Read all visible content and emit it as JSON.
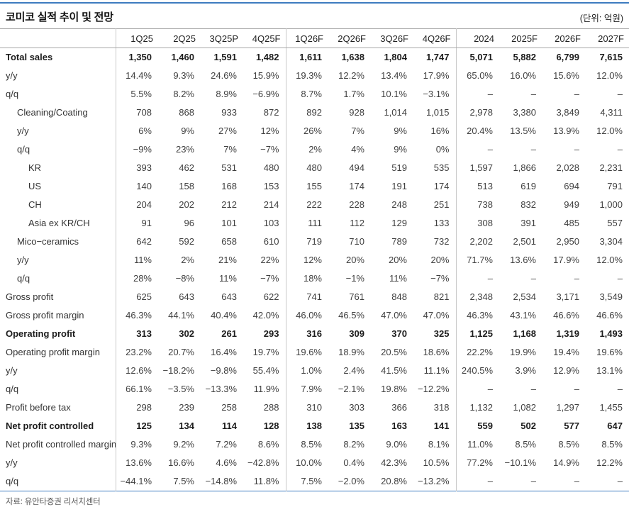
{
  "meta": {
    "title": "코미코 실적 추이 및 전망",
    "unit_label": "(단위: 억원)",
    "source": "자료: 유안타증권 리서치센터"
  },
  "colors": {
    "accent_blue": "#3d7cc0",
    "rule_gray": "#a6a6a6",
    "divider_gray": "#c9c9c9"
  },
  "table": {
    "columns": [
      "1Q25",
      "2Q25",
      "3Q25P",
      "4Q25F",
      "1Q26F",
      "2Q26F",
      "3Q26F",
      "4Q26F",
      "2024",
      "2025F",
      "2026F",
      "2027F"
    ],
    "quarter_column_count": 8,
    "year_column_count": 4,
    "group_divider_before_indexes": [
      4,
      8
    ],
    "rows": [
      {
        "label": "Total sales",
        "indent": 0,
        "bold": true,
        "values": [
          "1,350",
          "1,460",
          "1,591",
          "1,482",
          "1,611",
          "1,638",
          "1,804",
          "1,747",
          "5,071",
          "5,882",
          "6,799",
          "7,615"
        ]
      },
      {
        "label": "y/y",
        "indent": 0,
        "bold": false,
        "values": [
          "14.4%",
          "9.3%",
          "24.6%",
          "15.9%",
          "19.3%",
          "12.2%",
          "13.4%",
          "17.9%",
          "65.0%",
          "16.0%",
          "15.6%",
          "12.0%"
        ]
      },
      {
        "label": "q/q",
        "indent": 0,
        "bold": false,
        "values": [
          "5.5%",
          "8.2%",
          "8.9%",
          "−6.9%",
          "8.7%",
          "1.7%",
          "10.1%",
          "−3.1%",
          "–",
          "–",
          "–",
          "–"
        ]
      },
      {
        "label": "Cleaning/Coating",
        "indent": 1,
        "bold": false,
        "values": [
          "708",
          "868",
          "933",
          "872",
          "892",
          "928",
          "1,014",
          "1,015",
          "2,978",
          "3,380",
          "3,849",
          "4,311"
        ]
      },
      {
        "label": "y/y",
        "indent": 1,
        "bold": false,
        "values": [
          "6%",
          "9%",
          "27%",
          "12%",
          "26%",
          "7%",
          "9%",
          "16%",
          "20.4%",
          "13.5%",
          "13.9%",
          "12.0%"
        ]
      },
      {
        "label": "q/q",
        "indent": 1,
        "bold": false,
        "values": [
          "−9%",
          "23%",
          "7%",
          "−7%",
          "2%",
          "4%",
          "9%",
          "0%",
          "–",
          "–",
          "–",
          "–"
        ]
      },
      {
        "label": "KR",
        "indent": 2,
        "bold": false,
        "values": [
          "393",
          "462",
          "531",
          "480",
          "480",
          "494",
          "519",
          "535",
          "1,597",
          "1,866",
          "2,028",
          "2,231"
        ]
      },
      {
        "label": "US",
        "indent": 2,
        "bold": false,
        "values": [
          "140",
          "158",
          "168",
          "153",
          "155",
          "174",
          "191",
          "174",
          "513",
          "619",
          "694",
          "791"
        ]
      },
      {
        "label": "CH",
        "indent": 2,
        "bold": false,
        "values": [
          "204",
          "202",
          "212",
          "214",
          "222",
          "228",
          "248",
          "251",
          "738",
          "832",
          "949",
          "1,000"
        ]
      },
      {
        "label": "Asia ex KR/CH",
        "indent": 2,
        "bold": false,
        "values": [
          "91",
          "96",
          "101",
          "103",
          "111",
          "112",
          "129",
          "133",
          "308",
          "391",
          "485",
          "557"
        ]
      },
      {
        "label": "Mico−ceramics",
        "indent": 1,
        "bold": false,
        "values": [
          "642",
          "592",
          "658",
          "610",
          "719",
          "710",
          "789",
          "732",
          "2,202",
          "2,501",
          "2,950",
          "3,304"
        ]
      },
      {
        "label": "y/y",
        "indent": 1,
        "bold": false,
        "values": [
          "11%",
          "2%",
          "21%",
          "22%",
          "12%",
          "20%",
          "20%",
          "20%",
          "71.7%",
          "13.6%",
          "17.9%",
          "12.0%"
        ]
      },
      {
        "label": "q/q",
        "indent": 1,
        "bold": false,
        "values": [
          "28%",
          "−8%",
          "11%",
          "−7%",
          "18%",
          "−1%",
          "11%",
          "−7%",
          "–",
          "–",
          "–",
          "–"
        ]
      },
      {
        "label": "Gross profit",
        "indent": 0,
        "bold": false,
        "values": [
          "625",
          "643",
          "643",
          "622",
          "741",
          "761",
          "848",
          "821",
          "2,348",
          "2,534",
          "3,171",
          "3,549"
        ]
      },
      {
        "label": "Gross profit margin",
        "indent": 0,
        "bold": false,
        "values": [
          "46.3%",
          "44.1%",
          "40.4%",
          "42.0%",
          "46.0%",
          "46.5%",
          "47.0%",
          "47.0%",
          "46.3%",
          "43.1%",
          "46.6%",
          "46.6%"
        ]
      },
      {
        "label": "Operating profit",
        "indent": 0,
        "bold": true,
        "values": [
          "313",
          "302",
          "261",
          "293",
          "316",
          "309",
          "370",
          "325",
          "1,125",
          "1,168",
          "1,319",
          "1,493"
        ]
      },
      {
        "label": "Operating profit margin",
        "indent": 0,
        "bold": false,
        "values": [
          "23.2%",
          "20.7%",
          "16.4%",
          "19.7%",
          "19.6%",
          "18.9%",
          "20.5%",
          "18.6%",
          "22.2%",
          "19.9%",
          "19.4%",
          "19.6%"
        ]
      },
      {
        "label": "y/y",
        "indent": 0,
        "bold": false,
        "values": [
          "12.6%",
          "−18.2%",
          "−9.8%",
          "55.4%",
          "1.0%",
          "2.4%",
          "41.5%",
          "11.1%",
          "240.5%",
          "3.9%",
          "12.9%",
          "13.1%"
        ]
      },
      {
        "label": "q/q",
        "indent": 0,
        "bold": false,
        "values": [
          "66.1%",
          "−3.5%",
          "−13.3%",
          "11.9%",
          "7.9%",
          "−2.1%",
          "19.8%",
          "−12.2%",
          "–",
          "–",
          "–",
          "–"
        ]
      },
      {
        "label": "Profit before tax",
        "indent": 0,
        "bold": false,
        "values": [
          "298",
          "239",
          "258",
          "288",
          "310",
          "303",
          "366",
          "318",
          "1,132",
          "1,082",
          "1,297",
          "1,455"
        ]
      },
      {
        "label": "Net profit controlled",
        "indent": 0,
        "bold": true,
        "values": [
          "125",
          "134",
          "114",
          "128",
          "138",
          "135",
          "163",
          "141",
          "559",
          "502",
          "577",
          "647"
        ]
      },
      {
        "label": "Net profit controlled margin",
        "indent": 0,
        "bold": false,
        "values": [
          "9.3%",
          "9.2%",
          "7.2%",
          "8.6%",
          "8.5%",
          "8.2%",
          "9.0%",
          "8.1%",
          "11.0%",
          "8.5%",
          "8.5%",
          "8.5%"
        ]
      },
      {
        "label": "y/y",
        "indent": 0,
        "bold": false,
        "values": [
          "13.6%",
          "16.6%",
          "4.6%",
          "−42.8%",
          "10.0%",
          "0.4%",
          "42.3%",
          "10.5%",
          "77.2%",
          "−10.1%",
          "14.9%",
          "12.2%"
        ]
      },
      {
        "label": "q/q",
        "indent": 0,
        "bold": false,
        "values": [
          "−44.1%",
          "7.5%",
          "−14.8%",
          "11.8%",
          "7.5%",
          "−2.0%",
          "20.8%",
          "−13.2%",
          "–",
          "–",
          "–",
          "–"
        ]
      }
    ]
  }
}
